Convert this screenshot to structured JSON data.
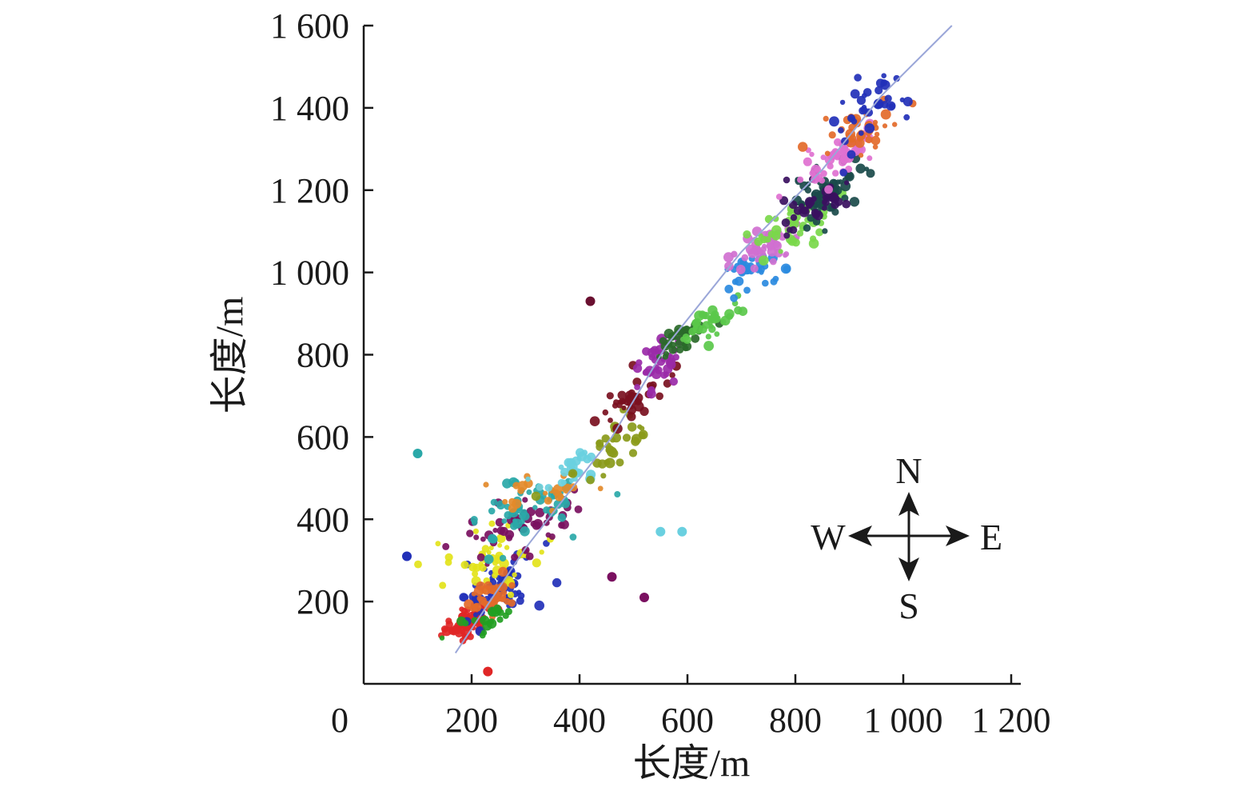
{
  "chart_data": {
    "type": "scatter",
    "title": "",
    "xlabel": "长度/m",
    "ylabel": "长度/m",
    "xlim": [
      0,
      1200
    ],
    "ylim": [
      0,
      1600
    ],
    "xticks": [
      {
        "value": 0,
        "label": "0"
      },
      {
        "value": 200,
        "label": "200"
      },
      {
        "value": 400,
        "label": "400"
      },
      {
        "value": 600,
        "label": "600"
      },
      {
        "value": 800,
        "label": "800"
      },
      {
        "value": 1000,
        "label": "1 000"
      },
      {
        "value": 1200,
        "label": "1 200"
      }
    ],
    "yticks": [
      {
        "value": 200,
        "label": "200"
      },
      {
        "value": 400,
        "label": "400"
      },
      {
        "value": 600,
        "label": "600"
      },
      {
        "value": 800,
        "label": "800"
      },
      {
        "value": 1000,
        "label": "1 000"
      },
      {
        "value": 1200,
        "label": "1 200"
      },
      {
        "value": 1400,
        "label": "1 400"
      },
      {
        "value": 1600,
        "label": "1 600"
      }
    ],
    "grid": false,
    "legend": "none",
    "trend_line": {
      "color": "#9aa6d8",
      "points": [
        [
          170,
          75
        ],
        [
          300,
          330
        ],
        [
          460,
          600
        ],
        [
          560,
          820
        ],
        [
          700,
          1050
        ],
        [
          850,
          1250
        ],
        [
          960,
          1430
        ],
        [
          1090,
          1600
        ]
      ]
    },
    "clusters": [
      {
        "color": "#e02626",
        "center": [
          190,
          150
        ],
        "spread": [
          45,
          35
        ],
        "count": 70,
        "tilt": 0.5
      },
      {
        "color": "#2230b8",
        "center": [
          250,
          230
        ],
        "spread": [
          75,
          70
        ],
        "count": 60,
        "tilt": 0.5
      },
      {
        "color": "#e3e31a",
        "center": [
          240,
          300
        ],
        "spread": [
          80,
          80
        ],
        "count": 45,
        "tilt": 0.4
      },
      {
        "color": "#e36a2a",
        "center": [
          235,
          210
        ],
        "spread": [
          45,
          40
        ],
        "count": 35,
        "tilt": 0.3
      },
      {
        "color": "#22a022",
        "center": [
          230,
          160
        ],
        "spread": [
          50,
          30
        ],
        "count": 20,
        "tilt": 0.3
      },
      {
        "color": "#7a1060",
        "center": [
          270,
          370
        ],
        "spread": [
          110,
          80
        ],
        "count": 50,
        "tilt": 0.3
      },
      {
        "color": "#2aa8a8",
        "center": [
          290,
          420
        ],
        "spread": [
          110,
          70
        ],
        "count": 55,
        "tilt": 0.3
      },
      {
        "color": "#e38a2a",
        "center": [
          320,
          470
        ],
        "spread": [
          100,
          50
        ],
        "count": 25,
        "tilt": 0.2
      },
      {
        "color": "#6ad0e0",
        "center": [
          390,
          520
        ],
        "spread": [
          60,
          40
        ],
        "count": 25,
        "tilt": 0.5
      },
      {
        "color": "#8a9a1a",
        "center": [
          460,
          580
        ],
        "spread": [
          70,
          60
        ],
        "count": 35,
        "tilt": 0.7
      },
      {
        "color": "#7a1020",
        "center": [
          490,
          690
        ],
        "spread": [
          70,
          50
        ],
        "count": 40,
        "tilt": 0.6
      },
      {
        "color": "#9a2aa8",
        "center": [
          540,
          770
        ],
        "spread": [
          60,
          60
        ],
        "count": 40,
        "tilt": 0.8
      },
      {
        "color": "#2a6a2a",
        "center": [
          590,
          840
        ],
        "spread": [
          50,
          40
        ],
        "count": 30,
        "tilt": 0.6
      },
      {
        "color": "#5ac84a",
        "center": [
          640,
          880
        ],
        "spread": [
          60,
          40
        ],
        "count": 35,
        "tilt": 0.5
      },
      {
        "color": "#2a8ae0",
        "center": [
          720,
          1010
        ],
        "spread": [
          60,
          35
        ],
        "count": 35,
        "tilt": 0.4
      },
      {
        "color": "#d070d0",
        "center": [
          740,
          1060
        ],
        "spread": [
          70,
          45
        ],
        "count": 45,
        "tilt": 0.6
      },
      {
        "color": "#7ad84a",
        "center": [
          800,
          1110
        ],
        "spread": [
          80,
          60
        ],
        "count": 45,
        "tilt": 0.6
      },
      {
        "color": "#1a4a4a",
        "center": [
          860,
          1200
        ],
        "spread": [
          70,
          60
        ],
        "count": 60,
        "tilt": 0.5
      },
      {
        "color": "#3a1060",
        "center": [
          830,
          1160
        ],
        "spread": [
          60,
          50
        ],
        "count": 35,
        "tilt": 0.5
      },
      {
        "color": "#e070d0",
        "center": [
          880,
          1280
        ],
        "spread": [
          70,
          50
        ],
        "count": 55,
        "tilt": 0.7
      },
      {
        "color": "#e36a2a",
        "center": [
          930,
          1350
        ],
        "spread": [
          70,
          55
        ],
        "count": 40,
        "tilt": 0.6
      },
      {
        "color": "#2230b8",
        "center": [
          940,
          1400
        ],
        "spread": [
          80,
          90
        ],
        "count": 35,
        "tilt": 0.5
      }
    ],
    "outliers": [
      {
        "color": "#6a1030",
        "x": 420,
        "y": 930
      },
      {
        "color": "#6ad0e0",
        "x": 550,
        "y": 370
      },
      {
        "color": "#6ad0e0",
        "x": 590,
        "y": 370
      },
      {
        "color": "#7a1060",
        "x": 520,
        "y": 210
      },
      {
        "color": "#7a1060",
        "x": 460,
        "y": 260
      },
      {
        "color": "#e02626",
        "x": 230,
        "y": 30
      },
      {
        "color": "#2230b8",
        "x": 80,
        "y": 310
      },
      {
        "color": "#2aa8a8",
        "x": 100,
        "y": 560
      }
    ]
  },
  "compass": {
    "north": "N",
    "south": "S",
    "east": "E",
    "west": "W"
  }
}
